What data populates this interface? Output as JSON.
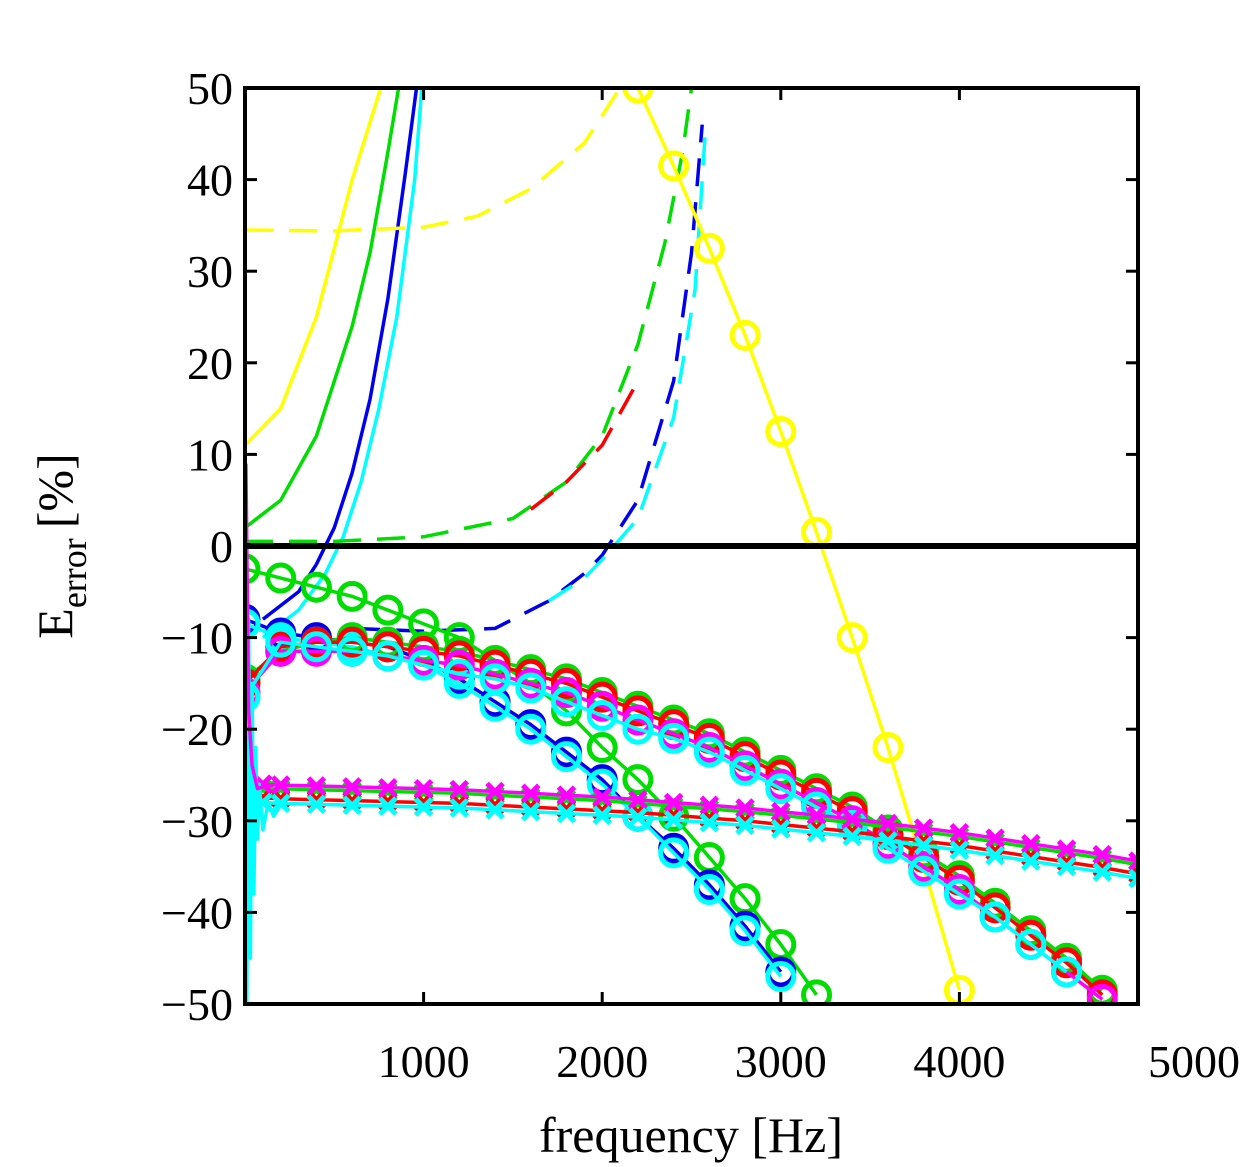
{
  "chart_data": {
    "type": "line",
    "xlabel": "frequency [Hz]",
    "ylabel_main": "E",
    "ylabel_sub": "error",
    "ylabel_unit": "[%]",
    "xlim": [
      0,
      5000
    ],
    "ylim": [
      -50,
      50
    ],
    "xticks": [
      {
        "value": 1000,
        "label": "1000"
      },
      {
        "value": 2000,
        "label": "2000"
      },
      {
        "value": 3000,
        "label": "3000"
      },
      {
        "value": 4000,
        "label": "4000"
      },
      {
        "value": 5000,
        "label": "5000"
      }
    ],
    "yticks": [
      {
        "value": 50,
        "label": "50"
      },
      {
        "value": 40,
        "label": "40"
      },
      {
        "value": 30,
        "label": "30"
      },
      {
        "value": 20,
        "label": "20"
      },
      {
        "value": 10,
        "label": "10"
      },
      {
        "value": 0,
        "label": "0"
      },
      {
        "value": -10,
        "label": "−10"
      },
      {
        "value": -20,
        "label": "−20"
      },
      {
        "value": -30,
        "label": "−30"
      },
      {
        "value": -40,
        "label": "−40"
      },
      {
        "value": -50,
        "label": "−50"
      }
    ],
    "grid": false,
    "zero_line": true,
    "series": [
      {
        "color": "#ffff00",
        "style": "solid",
        "marker": "none",
        "x": [
          0,
          200,
          400,
          600,
          760
        ],
        "y": [
          11,
          15,
          25,
          40,
          50
        ]
      },
      {
        "color": "#00dd00",
        "style": "solid",
        "marker": "none",
        "x": [
          0,
          200,
          400,
          600,
          700,
          800,
          860
        ],
        "y": [
          2,
          5,
          12,
          24,
          32,
          43,
          50
        ]
      },
      {
        "color": "#0000ee",
        "style": "solid",
        "marker": "none",
        "x": [
          100,
          300,
          400,
          500,
          600,
          700,
          800,
          900,
          960
        ],
        "y": [
          -8,
          -5,
          -2,
          2,
          8,
          16,
          27,
          41,
          50
        ]
      },
      {
        "color": "#00ffff",
        "style": "solid",
        "marker": "none",
        "x": [
          100,
          300,
          450,
          550,
          650,
          750,
          850,
          950,
          990
        ],
        "y": [
          -10,
          -7,
          -3,
          1,
          7,
          15,
          25,
          40,
          50
        ]
      },
      {
        "color": "#ffff00",
        "style": "dashed",
        "marker": "none",
        "x": [
          0,
          500,
          1000,
          1300,
          1600,
          1900,
          2100
        ],
        "y": [
          34.5,
          34.4,
          34.8,
          36,
          39,
          44,
          50
        ]
      },
      {
        "color": "#00dd00",
        "style": "dashed",
        "marker": "none",
        "x": [
          0,
          500,
          1000,
          1500,
          1800,
          2000,
          2200,
          2350,
          2450,
          2500
        ],
        "y": [
          0.5,
          0.5,
          1,
          3,
          7,
          12,
          22,
          33,
          43,
          50
        ]
      },
      {
        "color": "#ff0000",
        "style": "dashed",
        "marker": "none",
        "x": [
          1600,
          1800,
          2000,
          2200
        ],
        "y": [
          4,
          7,
          11,
          18
        ]
      },
      {
        "color": "#0000ee",
        "style": "dashed",
        "marker": "none",
        "x": [
          600,
          1000,
          1400,
          1700,
          1900,
          2000,
          2200,
          2400,
          2500,
          2560
        ],
        "y": [
          -9,
          -9.3,
          -9,
          -6,
          -3,
          -1,
          5,
          18,
          32,
          46
        ]
      },
      {
        "color": "#00ffff",
        "style": "dashed",
        "marker": "none",
        "x": [
          1700,
          1900,
          2000,
          2200,
          2400,
          2520,
          2580
        ],
        "y": [
          -6,
          -3.5,
          -1.5,
          3,
          14,
          28,
          46
        ]
      },
      {
        "color": "#ffff00",
        "style": "solid",
        "marker": "o",
        "x": [
          2200,
          2400,
          2600,
          2800,
          3000,
          3200,
          3400,
          3600,
          3800,
          4000
        ],
        "y": [
          50,
          41.5,
          32.5,
          23,
          12.5,
          1.5,
          -10,
          -22,
          -35,
          -48.5
        ]
      },
      {
        "color": "#00dd00",
        "style": "solid",
        "marker": "o",
        "x": [
          0,
          200,
          400,
          600,
          800,
          1000,
          1200,
          1400,
          1600,
          1800,
          2000,
          2200,
          2400,
          2600,
          2800,
          3000,
          3200
        ],
        "y": [
          -2.5,
          -3.5,
          -4.5,
          -5.5,
          -7,
          -8.5,
          -10,
          -12.5,
          -15,
          -18,
          -22,
          -25.5,
          -29.5,
          -34,
          -38.5,
          -43.5,
          -49
        ]
      },
      {
        "color": "#0000ee",
        "style": "solid",
        "marker": "o",
        "x": [
          0,
          200,
          400,
          600,
          800,
          1000,
          1200,
          1400,
          1600,
          1800,
          2000,
          2200,
          2400,
          2600,
          2800,
          3000
        ],
        "y": [
          -8,
          -9.5,
          -10,
          -10.5,
          -11,
          -12.5,
          -14.5,
          -17,
          -19.5,
          -22.5,
          -25.5,
          -29.5,
          -33,
          -37,
          -41.5,
          -46.5
        ]
      },
      {
        "color": "#00ffff",
        "style": "solid",
        "marker": "o",
        "x": [
          0,
          200,
          400,
          600,
          800,
          1000,
          1200,
          1400,
          1600,
          1800,
          2000,
          2200,
          2400,
          2600,
          2800,
          3000
        ],
        "y": [
          -8.5,
          -10,
          -10.5,
          -11,
          -12,
          -13,
          -15,
          -17.5,
          -20,
          -23,
          -26,
          -29.5,
          -33.5,
          -37.5,
          -42,
          -47
        ]
      },
      {
        "color": "#00dd00",
        "style": "solid",
        "marker": "o",
        "x": [
          0,
          200,
          400,
          600,
          800,
          1000,
          1200,
          1400,
          1600,
          1800,
          2000,
          2200,
          2400,
          2600,
          2800,
          3000,
          3200,
          3400,
          3600,
          3800,
          4000,
          4200,
          4400,
          4600,
          4800
        ],
        "y": [
          -14.5,
          -11.5,
          -10.5,
          -10,
          -10.5,
          -11,
          -11.5,
          -12.5,
          -13.5,
          -14.5,
          -16,
          -17.5,
          -19,
          -20.5,
          -22.5,
          -24.5,
          -26.5,
          -28.5,
          -31,
          -33.5,
          -36,
          -39,
          -42,
          -45,
          -48.5
        ]
      },
      {
        "color": "#ff0000",
        "style": "solid",
        "marker": "o",
        "x": [
          0,
          200,
          400,
          600,
          800,
          1000,
          1200,
          1400,
          1600,
          1800,
          2000,
          2200,
          2400,
          2600,
          2800,
          3000,
          3200,
          3400,
          3600,
          3800,
          4000,
          4200,
          4400,
          4600,
          4800
        ],
        "y": [
          -15,
          -11,
          -10.5,
          -10.5,
          -11,
          -11.5,
          -12,
          -13,
          -14,
          -15,
          -16.5,
          -18,
          -19.5,
          -21,
          -23,
          -25,
          -27,
          -29,
          -31.5,
          -34,
          -36.5,
          -39.5,
          -42.5,
          -45.5,
          -49
        ]
      },
      {
        "color": "#ff00ff",
        "style": "solid",
        "marker": "o",
        "x": [
          0,
          200,
          400,
          600,
          800,
          1000,
          1200,
          1400,
          1600,
          1800,
          2000,
          2200,
          2400,
          2600,
          2800,
          3000,
          3200,
          3400,
          3600,
          3800,
          4000,
          4200,
          4400,
          4600,
          4800
        ],
        "y": [
          -16,
          -11.5,
          -11.5,
          -11.5,
          -12,
          -12.5,
          -13,
          -14,
          -15,
          -16,
          -17.5,
          -19,
          -20.5,
          -22,
          -24,
          -26,
          -28,
          -30,
          -32.5,
          -35,
          -37.5,
          -40.5,
          -43.5,
          -46.5,
          -49.5
        ]
      },
      {
        "color": "#00ffff",
        "style": "solid",
        "marker": "o",
        "x": [
          0,
          200,
          400,
          600,
          800,
          1000,
          1200,
          1400,
          1600,
          1800,
          2000,
          2200,
          2400,
          2600,
          2800,
          3000,
          3200,
          3400,
          3600,
          3800,
          4000,
          4200,
          4400,
          4600
        ],
        "y": [
          -16.5,
          -10.5,
          -11,
          -11.5,
          -12,
          -13,
          -14,
          -14.5,
          -15.5,
          -17,
          -18.5,
          -20,
          -21,
          -22.5,
          -24.5,
          -26.5,
          -28.5,
          -30.5,
          -33,
          -35.5,
          -38,
          -40.5,
          -43.5,
          -46.5
        ]
      },
      {
        "color": "#00dd00",
        "style": "solid",
        "marker": "x",
        "x": [
          100,
          200,
          400,
          600,
          800,
          1000,
          1200,
          1400,
          1600,
          1800,
          2000,
          2200,
          2400,
          2600,
          2800,
          3000,
          3200,
          3400,
          3600,
          3800,
          4000,
          4200,
          4400,
          4600,
          4800,
          5000
        ],
        "y": [
          -26.5,
          -26.5,
          -26.6,
          -26.7,
          -26.8,
          -26.9,
          -27.0,
          -27.2,
          -27.4,
          -27.6,
          -27.8,
          -28.1,
          -28.4,
          -28.7,
          -29.0,
          -29.4,
          -29.8,
          -30.2,
          -30.7,
          -31.2,
          -31.7,
          -32.3,
          -32.9,
          -33.5,
          -34.1,
          -34.8
        ]
      },
      {
        "color": "#ff0000",
        "style": "solid",
        "marker": "x",
        "x": [
          100,
          200,
          400,
          600,
          800,
          1000,
          1200,
          1400,
          1600,
          1800,
          2000,
          2200,
          2400,
          2600,
          2800,
          3000,
          3200,
          3400,
          3600,
          3800,
          4000,
          4200,
          4400,
          4600,
          4800,
          5000
        ],
        "y": [
          -27.5,
          -27.6,
          -27.7,
          -27.8,
          -27.9,
          -28.0,
          -28.1,
          -28.3,
          -28.5,
          -28.7,
          -28.9,
          -29.1,
          -29.4,
          -29.7,
          -30.0,
          -30.4,
          -30.8,
          -31.2,
          -31.7,
          -32.2,
          -32.7,
          -33.3,
          -33.9,
          -34.5,
          -35.1,
          -35.8
        ]
      },
      {
        "color": "#ff00ff",
        "style": "solid",
        "marker": "x",
        "x": [
          100,
          200,
          400,
          600,
          800,
          1000,
          1200,
          1400,
          1600,
          1800,
          2000,
          2200,
          2400,
          2600,
          2800,
          3000,
          3200,
          3400,
          3600,
          3800,
          4000,
          4200,
          4400,
          4600,
          4800,
          5000
        ],
        "y": [
          -26.0,
          -26.1,
          -26.2,
          -26.3,
          -26.4,
          -26.5,
          -26.6,
          -26.8,
          -27.0,
          -27.2,
          -27.4,
          -27.7,
          -28.0,
          -28.3,
          -28.6,
          -29.0,
          -29.4,
          -29.8,
          -30.3,
          -30.8,
          -31.3,
          -31.9,
          -32.5,
          -33.1,
          -33.7,
          -34.4
        ]
      },
      {
        "color": "#00ffff",
        "style": "solid",
        "marker": "x",
        "x": [
          100,
          200,
          400,
          600,
          800,
          1000,
          1200,
          1400,
          1600,
          1800,
          2000,
          2200,
          2400,
          2600,
          2800,
          3000,
          3200,
          3400,
          3600,
          3800,
          4000,
          4200,
          4400,
          4600,
          4800,
          5000
        ],
        "y": [
          -28.0,
          -28.1,
          -28.2,
          -28.3,
          -28.4,
          -28.5,
          -28.6,
          -28.8,
          -29.0,
          -29.2,
          -29.4,
          -29.6,
          -29.9,
          -30.2,
          -30.5,
          -30.9,
          -31.3,
          -31.7,
          -32.2,
          -32.7,
          -33.2,
          -33.8,
          -34.4,
          -35.0,
          -35.6,
          -36.3
        ]
      },
      {
        "color": "#00ffff",
        "style": "solid",
        "marker": "none",
        "x": [
          10,
          20,
          30,
          40,
          50,
          60,
          70,
          80,
          100,
          130,
          160,
          200
        ],
        "y": [
          -50,
          -8,
          -45,
          -15,
          -38,
          -22,
          -32,
          -26,
          -31,
          -28,
          -29.5,
          -28.3
        ]
      },
      {
        "color": "#ff00ff",
        "style": "solid",
        "marker": "none",
        "x": [
          5,
          10,
          20,
          40,
          70,
          110,
          160
        ],
        "y": [
          9,
          0,
          -18,
          -24,
          -26.5,
          -26.2,
          -26.1
        ]
      }
    ]
  }
}
